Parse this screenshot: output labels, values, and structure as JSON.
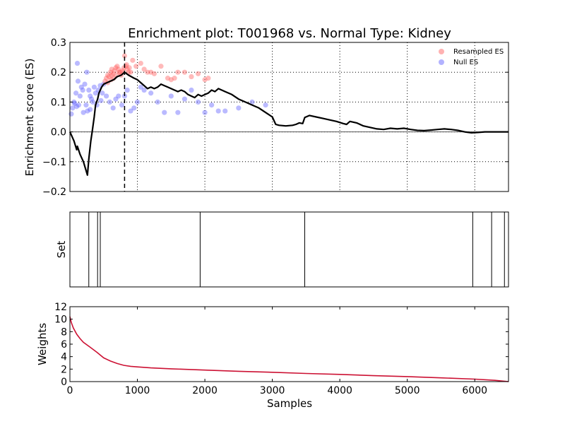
{
  "title": "Enrichment plot: T001968 vs. Normal Type: Kidney",
  "colors": {
    "resampled": "#ff6666",
    "null": "#6666ff",
    "es_line": "#000000",
    "weights_line": "#cc1133",
    "grid": "#000000"
  },
  "chart_data": [
    {
      "type": "scatter",
      "panel": "enrichment",
      "ylabel": "Enrichment score (ES)",
      "xlim": [
        0,
        6500
      ],
      "ylim": [
        -0.2,
        0.3
      ],
      "yticks": [
        "0.3",
        "0.2",
        "0.1",
        "0.0",
        "−0.1",
        "−0.2"
      ],
      "ytick_values": [
        0.3,
        0.2,
        0.1,
        0.0,
        -0.1,
        -0.2
      ],
      "grid": true,
      "legend_position": "top-right",
      "legend": [
        "Resampled ES",
        "Null ES"
      ],
      "peak_marker_x": 810,
      "es_curve": [
        [
          0,
          0.0
        ],
        [
          60,
          -0.03
        ],
        [
          100,
          -0.06
        ],
        [
          110,
          -0.048
        ],
        [
          150,
          -0.075
        ],
        [
          200,
          -0.1
        ],
        [
          260,
          -0.145
        ],
        [
          280,
          -0.09
        ],
        [
          310,
          -0.03
        ],
        [
          330,
          0.0
        ],
        [
          360,
          0.05
        ],
        [
          380,
          0.09
        ],
        [
          410,
          0.11
        ],
        [
          430,
          0.13
        ],
        [
          450,
          0.14
        ],
        [
          470,
          0.15
        ],
        [
          500,
          0.16
        ],
        [
          550,
          0.165
        ],
        [
          600,
          0.17
        ],
        [
          650,
          0.175
        ],
        [
          700,
          0.185
        ],
        [
          760,
          0.19
        ],
        [
          810,
          0.2
        ],
        [
          870,
          0.19
        ],
        [
          950,
          0.18
        ],
        [
          1000,
          0.175
        ],
        [
          1050,
          0.165
        ],
        [
          1100,
          0.155
        ],
        [
          1150,
          0.145
        ],
        [
          1200,
          0.15
        ],
        [
          1250,
          0.145
        ],
        [
          1300,
          0.15
        ],
        [
          1350,
          0.16
        ],
        [
          1400,
          0.155
        ],
        [
          1450,
          0.15
        ],
        [
          1500,
          0.145
        ],
        [
          1550,
          0.14
        ],
        [
          1600,
          0.135
        ],
        [
          1650,
          0.14
        ],
        [
          1700,
          0.135
        ],
        [
          1750,
          0.125
        ],
        [
          1800,
          0.12
        ],
        [
          1850,
          0.115
        ],
        [
          1900,
          0.125
        ],
        [
          1950,
          0.12
        ],
        [
          2000,
          0.125
        ],
        [
          2050,
          0.13
        ],
        [
          2100,
          0.14
        ],
        [
          2150,
          0.135
        ],
        [
          2200,
          0.145
        ],
        [
          2250,
          0.14
        ],
        [
          2300,
          0.135
        ],
        [
          2400,
          0.125
        ],
        [
          2500,
          0.11
        ],
        [
          2600,
          0.1
        ],
        [
          2700,
          0.09
        ],
        [
          2800,
          0.08
        ],
        [
          2900,
          0.065
        ],
        [
          3000,
          0.05
        ],
        [
          3050,
          0.025
        ],
        [
          3100,
          0.022
        ],
        [
          3200,
          0.02
        ],
        [
          3300,
          0.022
        ],
        [
          3350,
          0.025
        ],
        [
          3400,
          0.03
        ],
        [
          3450,
          0.028
        ],
        [
          3480,
          0.048
        ],
        [
          3550,
          0.055
        ],
        [
          3650,
          0.05
        ],
        [
          3750,
          0.045
        ],
        [
          3850,
          0.04
        ],
        [
          3950,
          0.035
        ],
        [
          4050,
          0.028
        ],
        [
          4100,
          0.025
        ],
        [
          4150,
          0.035
        ],
        [
          4250,
          0.03
        ],
        [
          4350,
          0.02
        ],
        [
          4450,
          0.015
        ],
        [
          4550,
          0.01
        ],
        [
          4650,
          0.008
        ],
        [
          4750,
          0.012
        ],
        [
          4850,
          0.01
        ],
        [
          4950,
          0.012
        ],
        [
          5050,
          0.008
        ],
        [
          5150,
          0.005
        ],
        [
          5250,
          0.004
        ],
        [
          5350,
          0.006
        ],
        [
          5450,
          0.008
        ],
        [
          5550,
          0.01
        ],
        [
          5650,
          0.008
        ],
        [
          5750,
          0.005
        ],
        [
          5850,
          0.0
        ],
        [
          5950,
          -0.003
        ],
        [
          6050,
          -0.002
        ],
        [
          6150,
          0.0
        ],
        [
          6300,
          0.0
        ],
        [
          6500,
          0.0
        ]
      ],
      "resampled_es": [
        [
          520,
          0.17
        ],
        [
          540,
          0.18
        ],
        [
          560,
          0.19
        ],
        [
          580,
          0.185
        ],
        [
          600,
          0.2
        ],
        [
          620,
          0.21
        ],
        [
          640,
          0.195
        ],
        [
          660,
          0.205
        ],
        [
          680,
          0.215
        ],
        [
          700,
          0.22
        ],
        [
          720,
          0.21
        ],
        [
          740,
          0.2
        ],
        [
          760,
          0.19
        ],
        [
          780,
          0.205
        ],
        [
          800,
          0.215
        ],
        [
          810,
          0.255
        ],
        [
          830,
          0.22
        ],
        [
          850,
          0.21
        ],
        [
          870,
          0.2
        ],
        [
          900,
          0.2
        ],
        [
          930,
          0.24
        ],
        [
          980,
          0.22
        ],
        [
          1050,
          0.23
        ],
        [
          1100,
          0.21
        ],
        [
          1150,
          0.2
        ],
        [
          1200,
          0.2
        ],
        [
          1250,
          0.195
        ],
        [
          1350,
          0.22
        ],
        [
          1450,
          0.18
        ],
        [
          1500,
          0.175
        ],
        [
          1550,
          0.18
        ],
        [
          1600,
          0.2
        ],
        [
          1700,
          0.2
        ],
        [
          1800,
          0.185
        ],
        [
          1900,
          0.195
        ],
        [
          2000,
          0.175
        ],
        [
          2050,
          0.18
        ],
        [
          560,
          0.165
        ],
        [
          610,
          0.175
        ],
        [
          650,
          0.18
        ],
        [
          690,
          0.19
        ],
        [
          730,
          0.2
        ],
        [
          770,
          0.2
        ],
        [
          840,
          0.225
        ],
        [
          880,
          0.215
        ],
        [
          620,
          0.19
        ]
      ],
      "null_es": [
        [
          20,
          0.06
        ],
        [
          40,
          0.08
        ],
        [
          60,
          0.1
        ],
        [
          70,
          0.095
        ],
        [
          90,
          0.13
        ],
        [
          100,
          0.085
        ],
        [
          110,
          0.23
        ],
        [
          130,
          0.09
        ],
        [
          150,
          0.12
        ],
        [
          170,
          0.15
        ],
        [
          190,
          0.14
        ],
        [
          200,
          0.065
        ],
        [
          220,
          0.16
        ],
        [
          240,
          0.09
        ],
        [
          260,
          0.07
        ],
        [
          280,
          0.14
        ],
        [
          300,
          0.12
        ],
        [
          320,
          0.11
        ],
        [
          340,
          0.1
        ],
        [
          360,
          0.15
        ],
        [
          380,
          0.13
        ],
        [
          400,
          0.09
        ],
        [
          420,
          0.14
        ],
        [
          450,
          0.155
        ],
        [
          480,
          0.13
        ],
        [
          500,
          0.16
        ],
        [
          540,
          0.12
        ],
        [
          590,
          0.1
        ],
        [
          640,
          0.08
        ],
        [
          680,
          0.11
        ],
        [
          720,
          0.12
        ],
        [
          770,
          0.09
        ],
        [
          810,
          0.12
        ],
        [
          850,
          0.14
        ],
        [
          900,
          0.07
        ],
        [
          950,
          0.08
        ],
        [
          1000,
          0.1
        ],
        [
          1050,
          0.15
        ],
        [
          1100,
          0.14
        ],
        [
          1200,
          0.13
        ],
        [
          1300,
          0.1
        ],
        [
          1400,
          0.065
        ],
        [
          1500,
          0.12
        ],
        [
          1600,
          0.065
        ],
        [
          1700,
          0.11
        ],
        [
          1800,
          0.14
        ],
        [
          1900,
          0.1
        ],
        [
          2000,
          0.065
        ],
        [
          2100,
          0.09
        ],
        [
          2200,
          0.07
        ],
        [
          2300,
          0.07
        ],
        [
          2500,
          0.08
        ],
        [
          2700,
          0.1
        ],
        [
          2900,
          0.09
        ],
        [
          250,
          0.2
        ],
        [
          120,
          0.17
        ],
        [
          300,
          0.075
        ],
        [
          460,
          0.105
        ]
      ]
    },
    {
      "type": "bar",
      "panel": "set",
      "ylabel": "Set",
      "xlim": [
        0,
        6500
      ],
      "positions": [
        280,
        410,
        450,
        1930,
        3480,
        5970,
        6250,
        6440
      ]
    },
    {
      "type": "line",
      "panel": "weights",
      "ylabel": "Weights",
      "xlabel": "Samples",
      "xlim": [
        0,
        6500
      ],
      "ylim": [
        0,
        12
      ],
      "xticks": [
        "0",
        "1000",
        "2000",
        "3000",
        "4000",
        "5000",
        "6000"
      ],
      "xtick_values": [
        0,
        1000,
        2000,
        3000,
        4000,
        5000,
        6000
      ],
      "yticks": [
        "12",
        "10",
        "8",
        "6",
        "4",
        "2",
        "0"
      ],
      "ytick_values": [
        12,
        10,
        8,
        6,
        4,
        2,
        0
      ],
      "curve": [
        [
          0,
          10.4
        ],
        [
          20,
          9.5
        ],
        [
          50,
          8.6
        ],
        [
          100,
          7.6
        ],
        [
          150,
          6.9
        ],
        [
          200,
          6.3
        ],
        [
          300,
          5.5
        ],
        [
          400,
          4.7
        ],
        [
          500,
          3.8
        ],
        [
          600,
          3.3
        ],
        [
          700,
          2.9
        ],
        [
          800,
          2.6
        ],
        [
          900,
          2.45
        ],
        [
          1000,
          2.35
        ],
        [
          1200,
          2.2
        ],
        [
          1500,
          2.05
        ],
        [
          2000,
          1.85
        ],
        [
          2500,
          1.65
        ],
        [
          3000,
          1.5
        ],
        [
          3500,
          1.3
        ],
        [
          4000,
          1.15
        ],
        [
          4500,
          0.95
        ],
        [
          5000,
          0.8
        ],
        [
          5500,
          0.6
        ],
        [
          6000,
          0.4
        ],
        [
          6300,
          0.2
        ],
        [
          6500,
          0.0
        ]
      ]
    }
  ]
}
